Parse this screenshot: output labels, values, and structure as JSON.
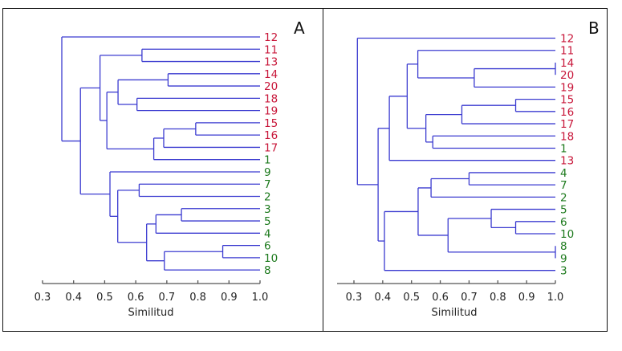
{
  "chart_data": [
    {
      "type": "dendrogram",
      "panel_label": "A",
      "xlabel": "Similitud",
      "xlim": [
        0.3,
        1.0
      ],
      "ticks": [
        "0.3",
        "0.4",
        "0.5",
        "0.6",
        "0.7",
        "0.8",
        "0.9",
        "1.0"
      ],
      "leaf_order": [
        "12",
        "11",
        "13",
        "14",
        "20",
        "18",
        "19",
        "15",
        "16",
        "17",
        "1",
        "9",
        "7",
        "2",
        "3",
        "5",
        "4",
        "6",
        "10",
        "8"
      ],
      "tree": {
        "h": 0.362,
        "c": [
          "12",
          {
            "h": 0.422,
            "c": [
              {
                "h": 0.485,
                "c": [
                  {
                    "h": 0.62,
                    "c": [
                      "11",
                      "13"
                    ]
                  },
                  {
                    "h": 0.507,
                    "c": [
                      {
                        "h": 0.543,
                        "c": [
                          {
                            "h": 0.704,
                            "c": [
                              "14",
                              "20"
                            ]
                          },
                          {
                            "h": 0.604,
                            "c": [
                              "18",
                              "19"
                            ]
                          }
                        ]
                      },
                      {
                        "h": 0.658,
                        "c": [
                          {
                            "h": 0.69,
                            "c": [
                              {
                                "h": 0.793,
                                "c": [
                                  "15",
                                  "16"
                                ]
                              },
                              "17"
                            ]
                          },
                          "1"
                        ]
                      }
                    ]
                  }
                ]
              },
              {
                "h": 0.517,
                "c": [
                  "9",
                  {
                    "h": 0.542,
                    "c": [
                      {
                        "h": 0.611,
                        "c": [
                          "7",
                          "2"
                        ]
                      },
                      {
                        "h": 0.635,
                        "c": [
                          {
                            "h": 0.665,
                            "c": [
                              {
                                "h": 0.747,
                                "c": [
                                  "3",
                                  "5"
                                ]
                              },
                              "4"
                            ]
                          },
                          {
                            "h": 0.692,
                            "c": [
                              {
                                "h": 0.88,
                                "c": [
                                  "6",
                                  "10"
                                ]
                              },
                              "8"
                            ]
                          }
                        ]
                      }
                    ]
                  }
                ]
              }
            ]
          }
        ]
      }
    },
    {
      "type": "dendrogram",
      "panel_label": "B",
      "xlabel": "Similitud",
      "xlim": [
        0.3,
        1.0
      ],
      "ticks": [
        "0.3",
        "0.4",
        "0.5",
        "0.6",
        "0.7",
        "0.8",
        "0.9",
        "1.0"
      ],
      "leaf_order": [
        "12",
        "11",
        "14",
        "20",
        "19",
        "15",
        "16",
        "17",
        "18",
        "1",
        "13",
        "4",
        "7",
        "2",
        "5",
        "6",
        "10",
        "8",
        "9",
        "3"
      ],
      "tree": {
        "h": 0.312,
        "c": [
          "12",
          {
            "h": 0.384,
            "c": [
              {
                "h": 0.423,
                "c": [
                  {
                    "h": 0.485,
                    "c": [
                      {
                        "h": 0.522,
                        "c": [
                          "11",
                          {
                            "h": 0.718,
                            "c": [
                              {
                                "h": 1.0,
                                "c": [
                                  "14",
                                  "20"
                                ]
                              },
                              "19"
                            ]
                          }
                        ]
                      },
                      {
                        "h": 0.55,
                        "c": [
                          {
                            "h": 0.675,
                            "c": [
                              {
                                "h": 0.862,
                                "c": [
                                  "15",
                                  "16"
                                ]
                              },
                              "17"
                            ]
                          },
                          {
                            "h": 0.574,
                            "c": [
                              "18",
                              "1"
                            ]
                          }
                        ]
                      }
                    ]
                  },
                  "13"
                ]
              },
              {
                "h": 0.406,
                "c": [
                  {
                    "h": 0.523,
                    "c": [
                      {
                        "h": 0.568,
                        "c": [
                          {
                            "h": 0.7,
                            "c": [
                              "4",
                              "7"
                            ]
                          },
                          "2"
                        ]
                      },
                      {
                        "h": 0.627,
                        "c": [
                          {
                            "h": 0.777,
                            "c": [
                              "5",
                              {
                                "h": 0.862,
                                "c": [
                                  "6",
                                  "10"
                                ]
                              }
                            ]
                          },
                          {
                            "h": 1.0,
                            "c": [
                              "8",
                              "9"
                            ]
                          }
                        ]
                      }
                    ]
                  },
                  "3"
                ]
              }
            ]
          }
        ]
      }
    }
  ],
  "leaf_groups": {
    "red": [
      "11",
      "12",
      "13",
      "14",
      "15",
      "16",
      "17",
      "18",
      "19",
      "20"
    ],
    "green": [
      "1",
      "2",
      "3",
      "4",
      "5",
      "6",
      "7",
      "8",
      "9",
      "10"
    ]
  },
  "colors": {
    "line": "#3b3bd0",
    "red": "#c8173a",
    "green": "#1d7a1d",
    "frame": "#111111",
    "axis": "#555555"
  }
}
